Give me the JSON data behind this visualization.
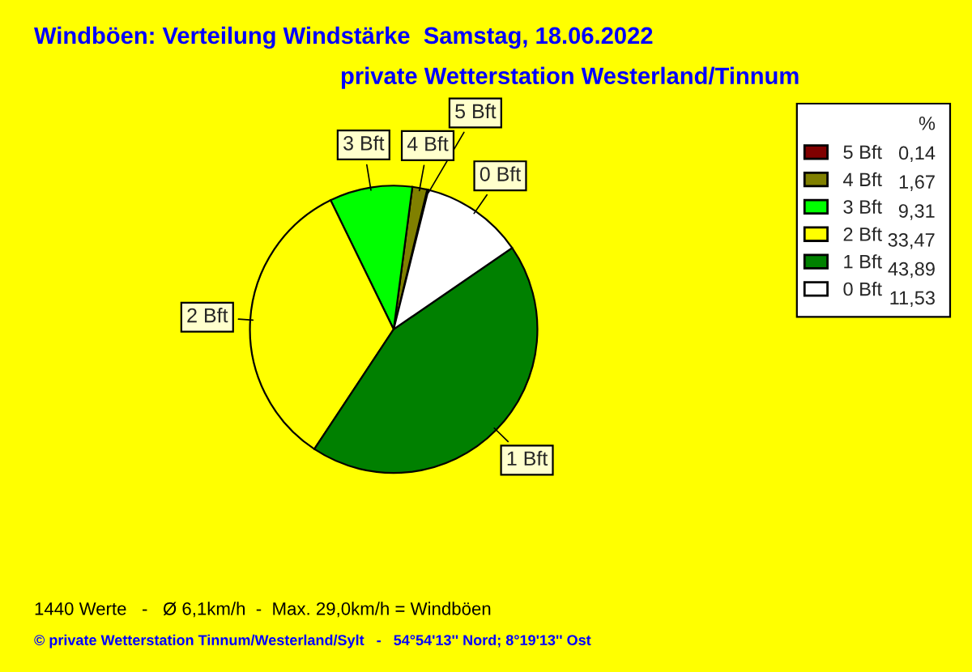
{
  "chart_data": {
    "type": "pie",
    "title": "Windböen: Verteilung Windstärke  Samstag, 18.06.2022",
    "subtitle": "private Wetterstation Westerland/Tinnum",
    "categories": [
      "5 Bft",
      "4 Bft",
      "3 Bft",
      "2 Bft",
      "1 Bft",
      "0 Bft"
    ],
    "values": [
      0.14,
      1.67,
      9.31,
      33.47,
      43.89,
      11.53
    ],
    "value_labels": [
      "0,14",
      "1,67",
      "9,31",
      "33,47",
      "43,89",
      "11,53"
    ],
    "colors": [
      "#800000",
      "#808000",
      "#00ff00",
      "#ffff00",
      "#008000",
      "#ffffff"
    ],
    "legend_title": "%",
    "legend": "right",
    "annotations": [
      "1440 Werte   -   Ø 6,1km/h  -  Max. 29,0km/h = Windböen",
      "© private Wetterstation Tinnum/Westerland/Sylt   -   54°54'13'' Nord; 8°19'13'' Ost"
    ]
  }
}
